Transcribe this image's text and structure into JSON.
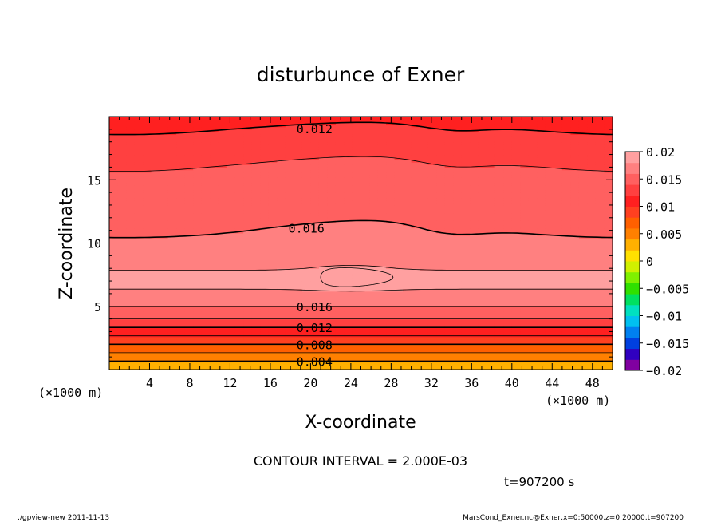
{
  "chart_data": {
    "type": "heatmap",
    "title": "disturbunce of Exner",
    "xlabel": "X-coordinate",
    "ylabel": "Z-coordinate",
    "x_unit": "(×1000 m)",
    "y_unit": "(×1000 m)",
    "xlim": [
      0,
      50
    ],
    "ylim": [
      0,
      20
    ],
    "x_ticks": [
      4,
      8,
      12,
      16,
      20,
      24,
      28,
      32,
      36,
      40,
      44,
      48
    ],
    "y_ticks": [
      5,
      10,
      15
    ],
    "contour_labels": [
      {
        "text": "0.012",
        "x": 18.6,
        "y": 19.05
      },
      {
        "text": "0.016",
        "x": 17.8,
        "y": 11.2
      },
      {
        "text": "0.016",
        "x": 18.6,
        "y": 5.0
      },
      {
        "text": "0.012",
        "x": 18.6,
        "y": 3.35
      },
      {
        "text": "0.008",
        "x": 18.6,
        "y": 2.0
      },
      {
        "text": "0.004",
        "x": 18.6,
        "y": 0.65
      }
    ],
    "contour_interval_text": "CONTOUR INTERVAL = 2.000E-03",
    "time_text": "t=907200 s",
    "colorbar": {
      "ticks": [
        "0.02",
        "0.015",
        "0.01",
        "0.005",
        "0",
        "−0.005",
        "−0.01",
        "−0.015",
        "−0.02"
      ],
      "min": -0.02,
      "max": 0.02,
      "colors": [
        "#8000a0",
        "#3000c0",
        "#0040e0",
        "#0080f0",
        "#00c0f0",
        "#00e0c0",
        "#00e060",
        "#30e000",
        "#80f000",
        "#d0f000",
        "#ffe000",
        "#ffb000",
        "#ff8000",
        "#ff6000",
        "#ff4020",
        "#ff2020",
        "#ff4040",
        "#ff6060",
        "#ff8080",
        "#ffa0a0"
      ]
    },
    "profile": {
      "z": [
        0,
        0.5,
        1,
        1.5,
        2,
        2.5,
        3,
        3.5,
        4,
        4.5,
        5,
        5.5,
        6,
        6.5,
        7,
        7.5,
        8,
        9,
        10,
        11,
        12,
        13,
        14,
        15,
        16,
        17,
        18,
        19,
        20
      ],
      "values": [
        0.002,
        0.0035,
        0.005,
        0.0065,
        0.008,
        0.0095,
        0.011,
        0.0125,
        0.014,
        0.015,
        0.016,
        0.0168,
        0.0175,
        0.0182,
        0.0187,
        0.0185,
        0.0178,
        0.0172,
        0.0165,
        0.016,
        0.0155,
        0.0152,
        0.015,
        0.0148,
        0.0142,
        0.0135,
        0.0128,
        0.0121,
        0.0112
      ]
    }
  },
  "footer": {
    "left": "./gpview-new   2011-11-13",
    "right": "MarsCond_Exner.nc@Exner,x=0:50000,z=0:20000,t=907200"
  }
}
